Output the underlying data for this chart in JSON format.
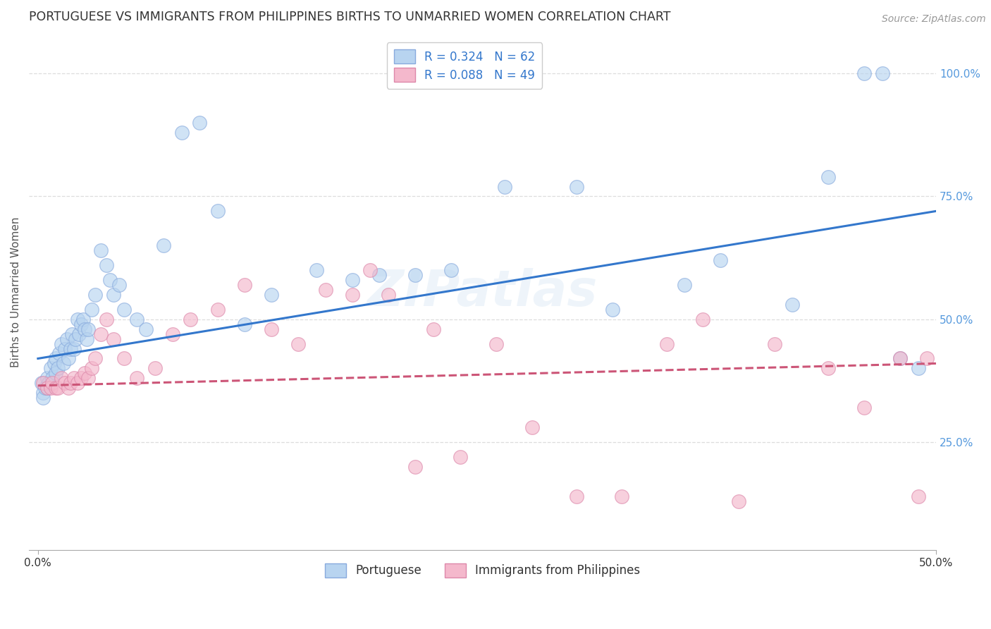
{
  "title": "PORTUGUESE VS IMMIGRANTS FROM PHILIPPINES BIRTHS TO UNMARRIED WOMEN CORRELATION CHART",
  "source": "Source: ZipAtlas.com",
  "ylabel": "Births to Unmarried Women",
  "x_tick_labels_outer": [
    "0.0%",
    "50.0%"
  ],
  "x_tick_positions_outer": [
    0.0,
    0.5
  ],
  "y_tick_labels": [
    "25.0%",
    "50.0%",
    "75.0%",
    "100.0%"
  ],
  "y_tick_positions": [
    0.25,
    0.5,
    0.75,
    1.0
  ],
  "xlim": [
    -0.005,
    0.5
  ],
  "ylim": [
    0.03,
    1.08
  ],
  "legend_entries": [
    {
      "label": "R = 0.324   N = 62",
      "color": "#b8d4f0",
      "edge": "#88aadd"
    },
    {
      "label": "R = 0.088   N = 49",
      "color": "#f4b8cc",
      "edge": "#dd88aa"
    }
  ],
  "legend_labels_bottom": [
    "Portuguese",
    "Immigrants from Philippines"
  ],
  "watermark": "ZIPatlas",
  "blue_scatter_x": [
    0.002,
    0.003,
    0.003,
    0.004,
    0.005,
    0.005,
    0.006,
    0.007,
    0.008,
    0.009,
    0.01,
    0.01,
    0.011,
    0.012,
    0.013,
    0.014,
    0.015,
    0.016,
    0.017,
    0.018,
    0.019,
    0.02,
    0.021,
    0.022,
    0.023,
    0.024,
    0.025,
    0.026,
    0.027,
    0.028,
    0.03,
    0.032,
    0.035,
    0.038,
    0.04,
    0.042,
    0.045,
    0.048,
    0.055,
    0.06,
    0.07,
    0.08,
    0.09,
    0.1,
    0.115,
    0.13,
    0.155,
    0.175,
    0.19,
    0.21,
    0.23,
    0.26,
    0.3,
    0.32,
    0.36,
    0.38,
    0.42,
    0.44,
    0.46,
    0.47,
    0.48,
    0.49
  ],
  "blue_scatter_y": [
    0.37,
    0.35,
    0.34,
    0.36,
    0.38,
    0.36,
    0.37,
    0.4,
    0.38,
    0.41,
    0.42,
    0.39,
    0.4,
    0.43,
    0.45,
    0.41,
    0.44,
    0.46,
    0.42,
    0.44,
    0.47,
    0.44,
    0.46,
    0.5,
    0.47,
    0.49,
    0.5,
    0.48,
    0.46,
    0.48,
    0.52,
    0.55,
    0.64,
    0.61,
    0.58,
    0.55,
    0.57,
    0.52,
    0.5,
    0.48,
    0.65,
    0.88,
    0.9,
    0.72,
    0.49,
    0.55,
    0.6,
    0.58,
    0.59,
    0.59,
    0.6,
    0.77,
    0.77,
    0.52,
    0.57,
    0.62,
    0.53,
    0.79,
    1.0,
    1.0,
    0.42,
    0.4
  ],
  "pink_scatter_x": [
    0.003,
    0.005,
    0.007,
    0.008,
    0.01,
    0.011,
    0.013,
    0.015,
    0.017,
    0.018,
    0.02,
    0.022,
    0.024,
    0.026,
    0.028,
    0.03,
    0.032,
    0.035,
    0.038,
    0.042,
    0.048,
    0.055,
    0.065,
    0.075,
    0.085,
    0.1,
    0.115,
    0.13,
    0.145,
    0.16,
    0.175,
    0.185,
    0.195,
    0.21,
    0.22,
    0.235,
    0.255,
    0.275,
    0.3,
    0.325,
    0.35,
    0.37,
    0.39,
    0.41,
    0.44,
    0.46,
    0.48,
    0.49,
    0.495
  ],
  "pink_scatter_y": [
    0.37,
    0.36,
    0.36,
    0.37,
    0.36,
    0.36,
    0.38,
    0.37,
    0.36,
    0.37,
    0.38,
    0.37,
    0.38,
    0.39,
    0.38,
    0.4,
    0.42,
    0.47,
    0.5,
    0.46,
    0.42,
    0.38,
    0.4,
    0.47,
    0.5,
    0.52,
    0.57,
    0.48,
    0.45,
    0.56,
    0.55,
    0.6,
    0.55,
    0.2,
    0.48,
    0.22,
    0.45,
    0.28,
    0.14,
    0.14,
    0.45,
    0.5,
    0.13,
    0.45,
    0.4,
    0.32,
    0.42,
    0.14,
    0.42
  ],
  "blue_line_intercept": 0.42,
  "blue_line_slope": 0.6,
  "pink_line_intercept": 0.365,
  "pink_line_slope": 0.09,
  "dot_size": 200,
  "dot_alpha": 0.65,
  "blue_color": "#b8d4f0",
  "blue_edge_color": "#88aadd",
  "pink_color": "#f4b8cc",
  "pink_edge_color": "#dd88aa",
  "blue_line_color": "#3377cc",
  "pink_line_color": "#cc5577",
  "grid_color": "#dddddd",
  "background_color": "#ffffff",
  "title_fontsize": 12.5,
  "axis_fontsize": 11,
  "tick_fontsize": 11,
  "source_fontsize": 10,
  "right_tick_color": "#5599dd"
}
